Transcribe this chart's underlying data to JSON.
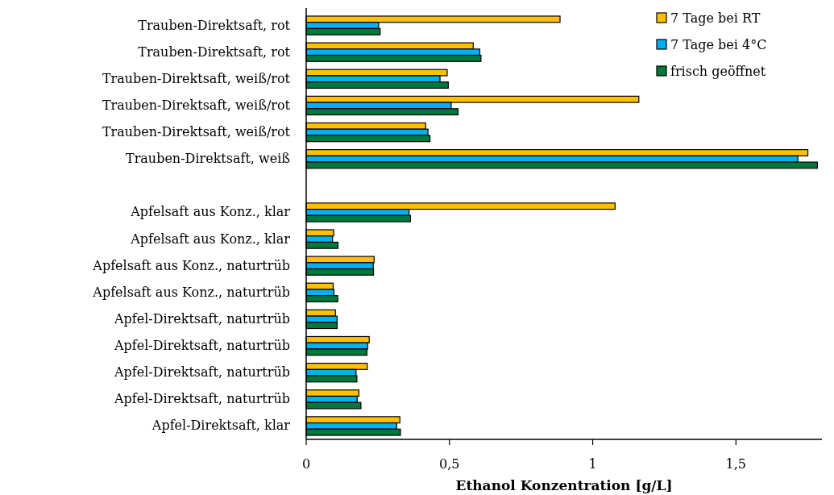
{
  "chart_data": {
    "type": "bar",
    "orientation": "horizontal",
    "xlabel": "Ethanol Konzentration [g/L]",
    "categories": [
      "Trauben-Direktsaft, rot",
      "Trauben-Direktsaft, rot",
      "Trauben-Direktsaft, weiß/rot",
      "Trauben-Direktsaft, weiß/rot",
      "Trauben-Direktsaft, weiß/rot",
      "Trauben-Direktsaft, weiß",
      null,
      "Apfelsaft aus Konz., klar",
      "Apfelsaft aus Konz., klar",
      "Apfelsaft aus Konz., naturtrüb",
      "Apfelsaft aus Konz., naturtrüb",
      "Apfel-Direktsaft, naturtrüb",
      "Apfel-Direktsaft, naturtrüb",
      "Apfel-Direktsaft, naturtrüb",
      "Apfel-Direktsaft, naturtrüb",
      "Apfel-Direktsaft, klar"
    ],
    "series": [
      {
        "name": "7 Tage bei RT",
        "color": "#ffc000",
        "values": [
          0.886,
          0.583,
          0.492,
          1.161,
          0.417,
          1.751,
          null,
          1.078,
          0.096,
          0.237,
          0.094,
          0.102,
          0.22,
          0.213,
          0.184,
          0.327
        ]
      },
      {
        "name": "7 Tage bei 4°C",
        "color": "#00b0f0",
        "values": [
          0.253,
          0.606,
          0.467,
          0.506,
          0.425,
          1.716,
          null,
          0.359,
          0.092,
          0.234,
          0.097,
          0.108,
          0.215,
          0.174,
          0.178,
          0.316
        ]
      },
      {
        "name": "frisch geöffnet",
        "color": "#00783c",
        "values": [
          0.258,
          0.61,
          0.496,
          0.53,
          0.432,
          1.784,
          null,
          0.364,
          0.111,
          0.235,
          0.11,
          0.108,
          0.212,
          0.177,
          0.191,
          0.329
        ]
      }
    ],
    "xlim": [
      0,
      1.8
    ],
    "xticks": [
      0,
      {
        "value": 0.5,
        "label": "0,5"
      },
      1,
      {
        "value": 1.5,
        "label": "1,5"
      }
    ],
    "legend": "top right",
    "grid": false
  }
}
